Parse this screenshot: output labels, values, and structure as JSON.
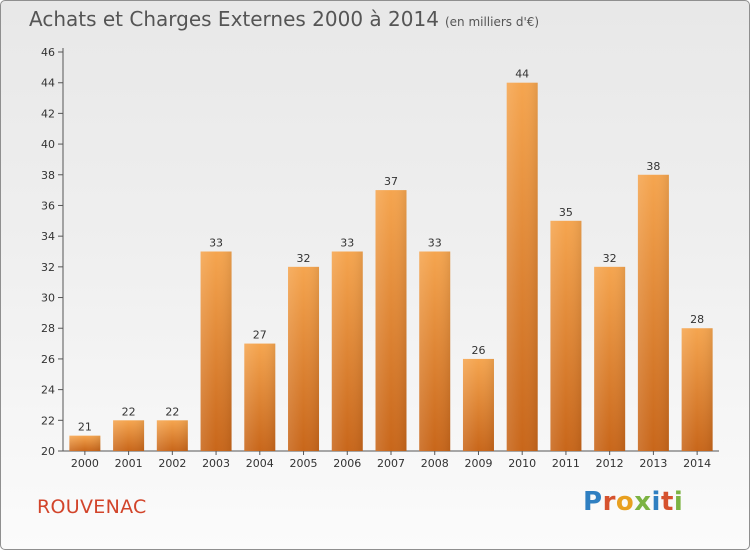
{
  "title": "Achats et Charges Externes 2000 à 2014",
  "subtitle": "(en milliers d'€)",
  "commune": "ROUVENAC",
  "logo": {
    "text": "Proxiti",
    "colors": [
      "#2f7fc1",
      "#d6522e",
      "#e8a020",
      "#7cb342",
      "#2f7fc1",
      "#d6522e",
      "#7cb342"
    ]
  },
  "colors": {
    "bar_top": "#f5a54f",
    "bar_bottom": "#c8661a",
    "axis": "#555555",
    "text": "#333333"
  },
  "chart_data": {
    "type": "bar",
    "categories": [
      "2000",
      "2001",
      "2002",
      "2003",
      "2004",
      "2005",
      "2006",
      "2007",
      "2008",
      "2009",
      "2010",
      "2011",
      "2012",
      "2013",
      "2014"
    ],
    "values": [
      21,
      22,
      22,
      33,
      27,
      32,
      33,
      37,
      33,
      26,
      44,
      35,
      32,
      38,
      28
    ],
    "ylim": [
      20,
      46
    ],
    "yticks": [
      20,
      22,
      24,
      26,
      28,
      30,
      32,
      34,
      36,
      38,
      40,
      42,
      44,
      46
    ],
    "grid": false,
    "xlabel": "",
    "ylabel": ""
  }
}
